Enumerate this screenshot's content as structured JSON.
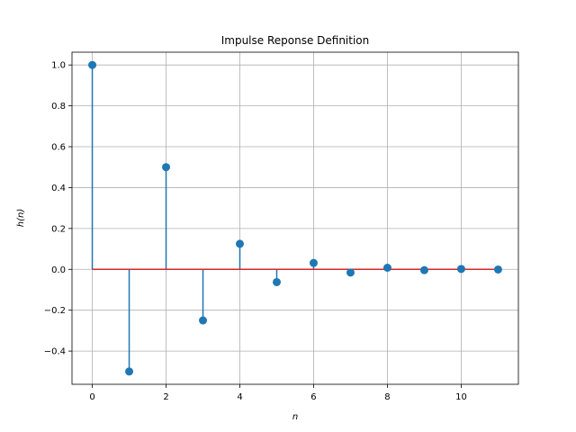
{
  "chart_data": {
    "type": "stem",
    "title": "Impulse Reponse Definition",
    "xlabel": "n",
    "ylabel": "h(n)",
    "x": [
      0,
      1,
      2,
      3,
      4,
      5,
      6,
      7,
      8,
      9,
      10,
      11
    ],
    "y": [
      1.0,
      -0.5,
      0.5,
      -0.25,
      0.125,
      -0.0625,
      0.03125,
      -0.015625,
      0.0078125,
      -0.00390625,
      0.001953125,
      -0.0009765625
    ],
    "xlim": [
      -0.55,
      11.55
    ],
    "ylim": [
      -0.5625,
      1.0625
    ],
    "xticks": [
      0,
      2,
      4,
      6,
      8,
      10
    ],
    "yticks": [
      -0.4,
      -0.2,
      0.0,
      0.2,
      0.4,
      0.6,
      0.8,
      1.0
    ],
    "xtick_labels": [
      "0",
      "2",
      "4",
      "6",
      "8",
      "10"
    ],
    "ytick_labels": [
      "−0.4",
      "−0.2",
      "0.0",
      "0.2",
      "0.4",
      "0.6",
      "0.8",
      "1.0"
    ],
    "grid": true,
    "baseline": 0,
    "colors": {
      "stem": "#1f77b4",
      "marker": "#1f77b4",
      "baseline": "#d62728",
      "grid": "#b0b0b0"
    }
  }
}
